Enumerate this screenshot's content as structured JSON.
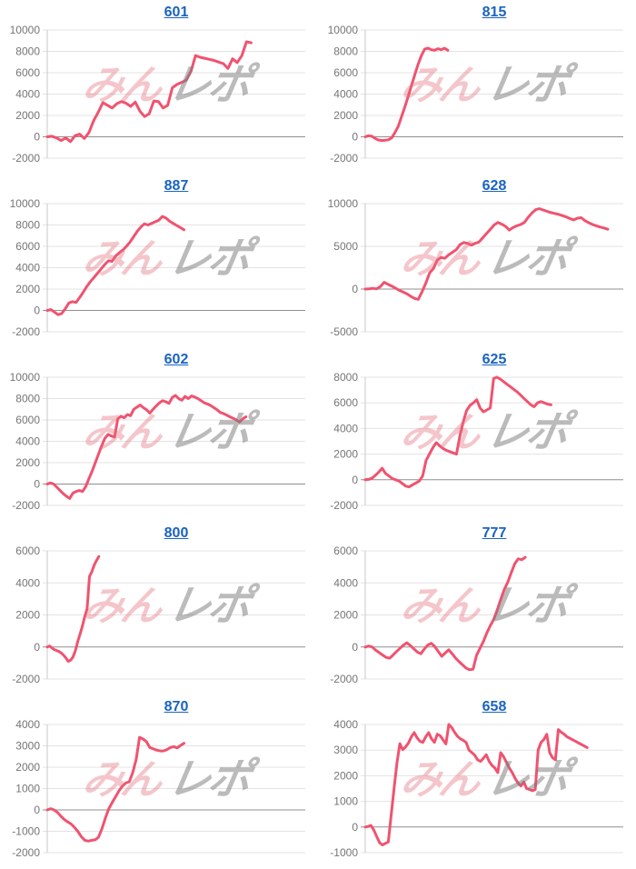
{
  "page": {
    "background": "#ffffff"
  },
  "theme": {
    "line_color": "#f0536f",
    "title_color": "#1a63c0",
    "grid_color": "#e3e3e3",
    "zero_line_color": "#8f8f8f",
    "axis_line_color": "#c9c9c9",
    "tick_label_color": "#757575"
  },
  "watermark": {
    "pink_text": "みん",
    "gray_text": "レポ",
    "pink_color": "rgba(228,112,126,0.40)",
    "gray_color": "rgba(125,125,125,0.52)"
  },
  "chart_data": [
    {
      "type": "line",
      "title": "601",
      "ylim": [
        -2000,
        10000
      ],
      "ytick_step": 2000,
      "x_extent": 0.79,
      "grid": true,
      "values": [
        0,
        50,
        -100,
        -350,
        -100,
        -450,
        100,
        250,
        -150,
        400,
        1500,
        2300,
        3200,
        2950,
        2700,
        3100,
        3300,
        3150,
        2850,
        3250,
        2400,
        1900,
        2150,
        3350,
        3300,
        2700,
        2950,
        4600,
        4900,
        5100,
        5300,
        6100,
        7600,
        7450,
        7350,
        7250,
        7150,
        7000,
        6850,
        6400,
        7300,
        6950,
        7600,
        8900,
        8800
      ]
    },
    {
      "type": "line",
      "title": "815",
      "ylim": [
        -2000,
        10000
      ],
      "ytick_step": 2000,
      "x_extent": 0.32,
      "grid": true,
      "values": [
        0,
        100,
        50,
        -150,
        -300,
        -350,
        -320,
        -280,
        -100,
        400,
        1000,
        1900,
        2800,
        3800,
        4800,
        5800,
        6800,
        7600,
        8200,
        8300,
        8150,
        8100,
        8250,
        8150,
        8300,
        8100
      ]
    },
    {
      "type": "line",
      "title": "887",
      "ylim": [
        -2000,
        10000
      ],
      "ytick_step": 2000,
      "x_extent": 0.53,
      "grid": true,
      "values": [
        0,
        80,
        -150,
        -400,
        -300,
        150,
        700,
        820,
        750,
        1200,
        1700,
        2250,
        2700,
        3100,
        3500,
        3900,
        4300,
        4650,
        4600,
        5100,
        5400,
        5650,
        6000,
        6400,
        6900,
        7400,
        7800,
        8100,
        8000,
        8150,
        8300,
        8450,
        8800,
        8650,
        8350,
        8150,
        7950,
        7750,
        7550
      ]
    },
    {
      "type": "line",
      "title": "628",
      "ylim": [
        -5000,
        10000
      ],
      "ytick_step": 5000,
      "x_extent": 0.94,
      "grid": true,
      "values": [
        0,
        30,
        80,
        20,
        300,
        800,
        550,
        350,
        100,
        -150,
        -350,
        -550,
        -850,
        -1100,
        -1200,
        -300,
        700,
        1900,
        2400,
        3400,
        3700,
        3600,
        4000,
        4300,
        4600,
        5200,
        5450,
        5350,
        5150,
        5350,
        5500,
        6000,
        6500,
        7000,
        7500,
        7800,
        7600,
        7350,
        6900,
        7200,
        7400,
        7550,
        7800,
        8400,
        8900,
        9300,
        9400,
        9250,
        9100,
        8950,
        8850,
        8750,
        8600,
        8450,
        8250,
        8100,
        8300,
        8350,
        8000,
        7750,
        7550,
        7400,
        7250,
        7150,
        7000
      ]
    },
    {
      "type": "line",
      "title": "602",
      "ylim": [
        -2000,
        10000
      ],
      "ytick_step": 2000,
      "x_extent": 0.77,
      "grid": true,
      "values": [
        0,
        100,
        0,
        -300,
        -600,
        -900,
        -1150,
        -1350,
        -850,
        -700,
        -600,
        -700,
        -250,
        500,
        1200,
        2000,
        2800,
        3600,
        4300,
        4650,
        4500,
        4400,
        6100,
        6350,
        6200,
        6500,
        6400,
        7000,
        7200,
        7400,
        7150,
        6950,
        6650,
        7000,
        7300,
        7600,
        7800,
        7700,
        7550,
        8100,
        8300,
        8000,
        7850,
        8200,
        8000,
        8250,
        8150,
        8000,
        7800,
        7600,
        7500,
        7350,
        7150,
        6950,
        6700,
        6600,
        6450,
        6300,
        6150,
        6000,
        5800,
        6100,
        6300
      ]
    },
    {
      "type": "line",
      "title": "625",
      "ylim": [
        -2000,
        8000
      ],
      "ytick_step": 2000,
      "x_extent": 0.72,
      "grid": true,
      "values": [
        0,
        30,
        120,
        350,
        600,
        900,
        500,
        300,
        100,
        0,
        -100,
        -300,
        -500,
        -550,
        -400,
        -250,
        -100,
        300,
        1500,
        2000,
        2500,
        2900,
        2650,
        2450,
        2300,
        2200,
        2100,
        2000,
        3400,
        4500,
        5400,
        5800,
        6000,
        6250,
        5600,
        5300,
        5450,
        5600,
        7900,
        8000,
        7850,
        7650,
        7450,
        7250,
        7050,
        6850,
        6600,
        6350,
        6100,
        5850,
        5700,
        6000,
        6100,
        6000,
        5900,
        5850
      ]
    },
    {
      "type": "line",
      "title": "800",
      "ylim": [
        -2000,
        6000
      ],
      "ytick_step": 2000,
      "x_extent": 0.2,
      "grid": true,
      "values": [
        0,
        60,
        -60,
        -160,
        -220,
        -280,
        -380,
        -520,
        -700,
        -900,
        -820,
        -620,
        -220,
        350,
        800,
        1300,
        1900,
        2400,
        4400,
        4700,
        5100,
        5400,
        5650
      ]
    },
    {
      "type": "line",
      "title": "777",
      "ylim": [
        -2000,
        6000
      ],
      "ytick_step": 2000,
      "x_extent": 0.62,
      "grid": true,
      "values": [
        0,
        60,
        0,
        -200,
        -350,
        -500,
        -650,
        -700,
        -500,
        -280,
        -80,
        120,
        260,
        80,
        -120,
        -320,
        -420,
        -120,
        120,
        230,
        20,
        -280,
        -580,
        -380,
        -180,
        -420,
        -700,
        -920,
        -1120,
        -1320,
        -1420,
        -1380,
        -520,
        -80,
        350,
        900,
        1350,
        1750,
        2350,
        3000,
        3600,
        4050,
        4650,
        5200,
        5500,
        5450,
        5600
      ]
    },
    {
      "type": "line",
      "title": "870",
      "ylim": [
        -2000,
        4000
      ],
      "ytick_step": 1000,
      "x_extent": 0.53,
      "grid": true,
      "values": [
        0,
        60,
        0,
        -120,
        -300,
        -450,
        -560,
        -660,
        -820,
        -1020,
        -1260,
        -1420,
        -1460,
        -1420,
        -1400,
        -1280,
        -880,
        -380,
        50,
        350,
        620,
        900,
        1120,
        1260,
        1320,
        1750,
        2350,
        3400,
        3320,
        3200,
        2920,
        2860,
        2800,
        2760,
        2760,
        2820,
        2920,
        2960,
        2900,
        3020,
        3120
      ]
    },
    {
      "type": "line",
      "title": "658",
      "ylim": [
        -1000,
        4000
      ],
      "ytick_step": 1000,
      "x_extent": 0.86,
      "grid": true,
      "values": [
        0,
        20,
        60,
        -120,
        -380,
        -620,
        -700,
        -640,
        -580,
        450,
        1500,
        2500,
        3250,
        3020,
        3120,
        3280,
        3520,
        3680,
        3480,
        3340,
        3300,
        3520,
        3680,
        3440,
        3300,
        3620,
        3560,
        3400,
        3240,
        4000,
        3880,
        3700,
        3540,
        3440,
        3380,
        3300,
        3000,
        2900,
        2800,
        2620,
        2560,
        2680,
        2820,
        2560,
        2400,
        2300,
        2120,
        2900,
        2740,
        2520,
        2300,
        2120,
        1900,
        1720,
        1600,
        1760,
        1500,
        1460,
        1420,
        1460,
        3000,
        3300,
        3420,
        3620,
        2900,
        2700,
        2620,
        3800,
        3700,
        3620,
        3520,
        3460,
        3400,
        3340,
        3280,
        3220,
        3160,
        3100
      ]
    }
  ]
}
